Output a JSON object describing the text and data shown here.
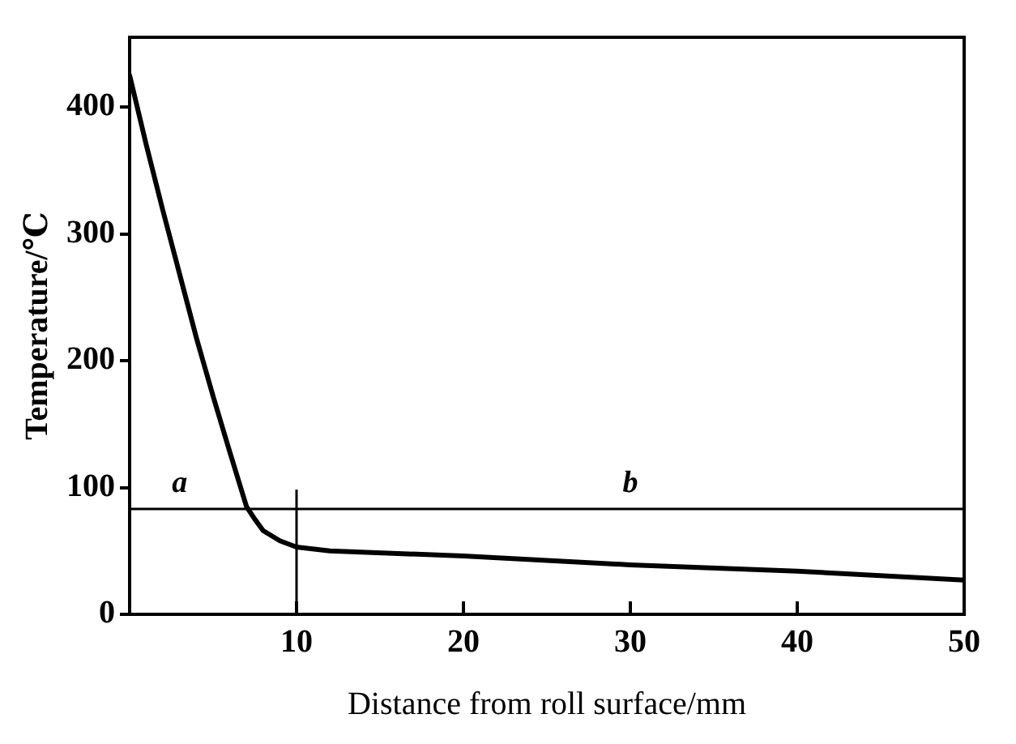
{
  "chart_data": {
    "type": "line",
    "xlabel": "Distance from roll surface/mm",
    "ylabel": "Temperature/℃",
    "x": [
      0,
      1,
      2,
      3,
      4,
      5,
      6,
      7,
      7.5,
      8,
      9,
      10,
      12,
      20,
      30,
      40,
      50
    ],
    "series": [
      {
        "color": "#000000",
        "values": [
          425,
          370,
          318,
          268,
          218,
          172,
          128,
          85,
          75,
          66,
          58,
          53,
          50,
          46,
          39,
          34,
          27
        ]
      }
    ],
    "xlim": [
      0,
      50
    ],
    "ylim": [
      0,
      455
    ],
    "xticks": [
      {
        "value": 0,
        "label": null
      },
      10,
      20,
      30,
      40,
      50
    ],
    "yticks": [
      0,
      100,
      200,
      300,
      400
    ],
    "ref_lines": [
      {
        "axis": "y",
        "value": 83
      },
      {
        "axis": "x",
        "value": 10
      }
    ],
    "annotations": [
      "a",
      "b"
    ],
    "grid": false,
    "legend": false,
    "marker": "none",
    "line_style": "solid"
  }
}
